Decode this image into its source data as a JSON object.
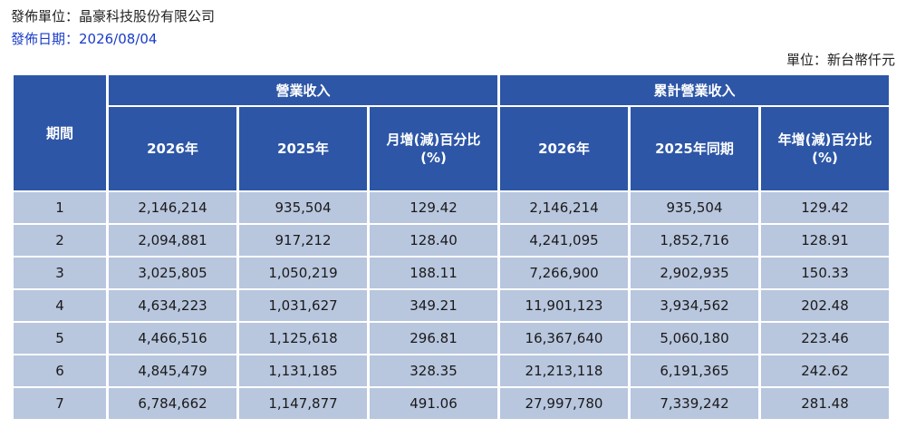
{
  "header": {
    "publisher": "發佈單位：晶豪科技股份有限公司",
    "date": "發佈日期：2026/08/04",
    "unit": "單位：新台幣仟元"
  },
  "table": {
    "period_header": "期間",
    "groups": {
      "monthly": "營業收入",
      "cumulative": "累計營業收入"
    },
    "columns": [
      "2026年",
      "2025年",
      "月增(減)百分比\n(%)",
      "2026年",
      "2025年同期",
      "年增(減)百分比\n(%)"
    ],
    "rows": [
      [
        "1",
        "2,146,214",
        "935,504",
        "129.42",
        "2,146,214",
        "935,504",
        "129.42"
      ],
      [
        "2",
        "2,094,881",
        "917,212",
        "128.40",
        "4,241,095",
        "1,852,716",
        "128.91"
      ],
      [
        "3",
        "3,025,805",
        "1,050,219",
        "188.11",
        "7,266,900",
        "2,902,935",
        "150.33"
      ],
      [
        "4",
        "4,634,223",
        "1,031,627",
        "349.21",
        "11,901,123",
        "3,934,562",
        "202.48"
      ],
      [
        "5",
        "4,466,516",
        "1,125,618",
        "296.81",
        "16,367,640",
        "5,060,180",
        "223.46"
      ],
      [
        "6",
        "4,845,479",
        "1,131,185",
        "328.35",
        "21,213,118",
        "6,191,365",
        "242.62"
      ],
      [
        "7",
        "6,784,662",
        "1,147,877",
        "491.06",
        "27,997,780",
        "7,339,242",
        "281.48"
      ]
    ]
  }
}
